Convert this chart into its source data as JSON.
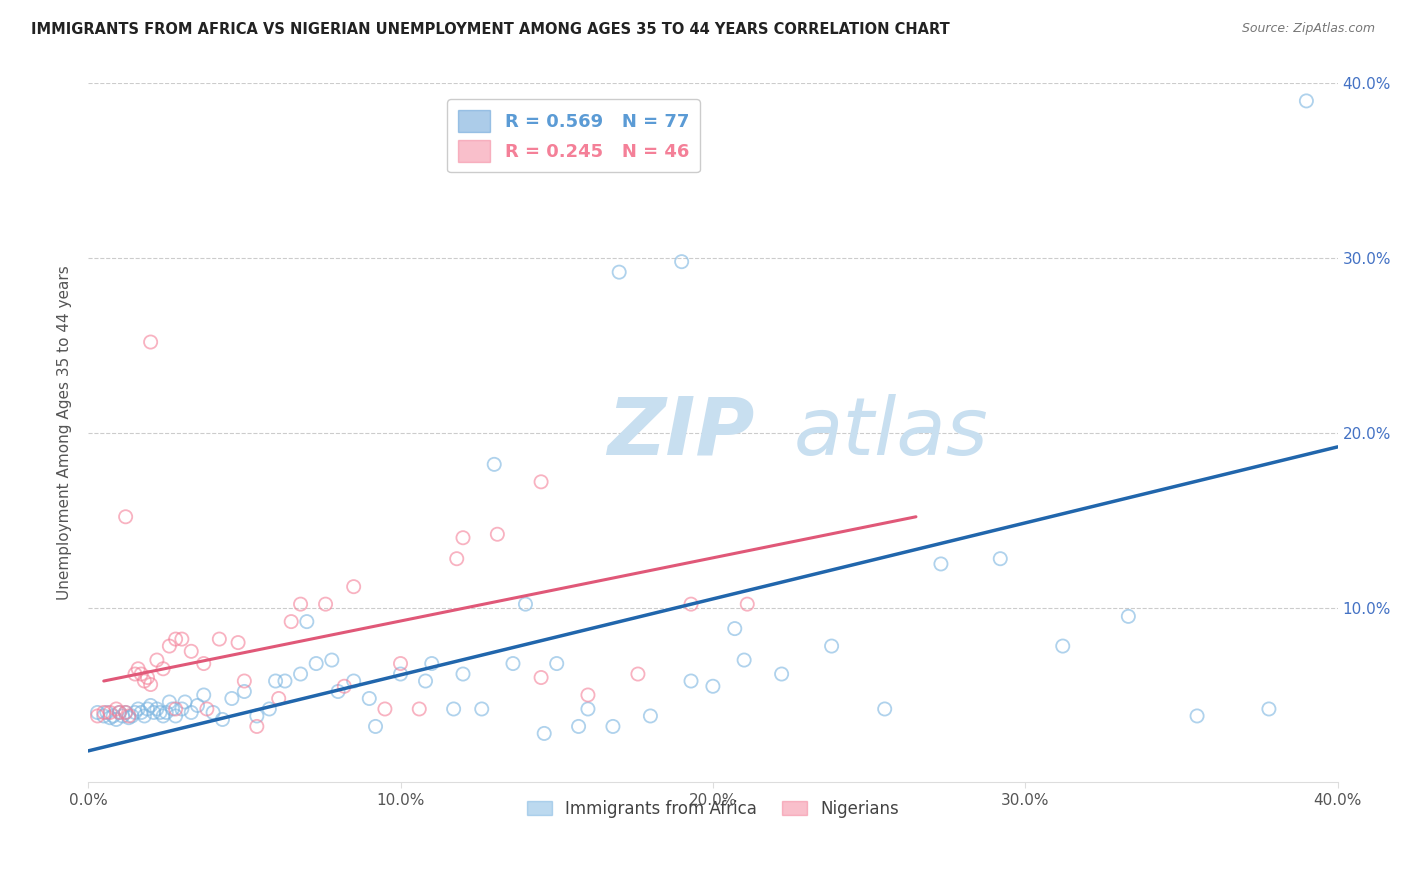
{
  "title": "IMMIGRANTS FROM AFRICA VS NIGERIAN UNEMPLOYMENT AMONG AGES 35 TO 44 YEARS CORRELATION CHART",
  "source": "Source: ZipAtlas.com",
  "ylabel": "Unemployment Among Ages 35 to 44 years",
  "xlim": [
    0.0,
    0.4
  ],
  "ylim": [
    0.0,
    0.4
  ],
  "xtick_labels": [
    "0.0%",
    "10.0%",
    "20.0%",
    "30.0%",
    "40.0%"
  ],
  "xtick_values": [
    0.0,
    0.1,
    0.2,
    0.3,
    0.4
  ],
  "right_ytick_labels": [
    "40.0%",
    "30.0%",
    "20.0%",
    "10.0%"
  ],
  "right_ytick_values": [
    0.4,
    0.3,
    0.2,
    0.1
  ],
  "legend_entries": [
    {
      "label": "R = 0.569   N = 77",
      "color": "#5b9bd5"
    },
    {
      "label": "R = 0.245   N = 46",
      "color": "#f48098"
    }
  ],
  "legend_labels_bottom": [
    "Immigrants from Africa",
    "Nigerians"
  ],
  "blue_color": "#7ab4e0",
  "pink_color": "#f48098",
  "trend_blue": "#2166ac",
  "trend_pink": "#e05878",
  "watermark_zip": "ZIP",
  "watermark_atlas": "atlas",
  "watermark_color": "#c8dff0",
  "background_color": "#ffffff",
  "grid_color": "#cccccc",
  "grid_yticks": [
    0.1,
    0.2,
    0.3,
    0.4
  ],
  "blue_trend_x": [
    0.0,
    0.4
  ],
  "blue_trend_y": [
    0.018,
    0.192
  ],
  "pink_trend_x": [
    0.005,
    0.265
  ],
  "pink_trend_y": [
    0.058,
    0.152
  ],
  "blue_scatter_x": [
    0.003,
    0.005,
    0.006,
    0.007,
    0.008,
    0.009,
    0.01,
    0.011,
    0.012,
    0.013,
    0.014,
    0.015,
    0.016,
    0.017,
    0.018,
    0.019,
    0.02,
    0.021,
    0.022,
    0.023,
    0.024,
    0.025,
    0.026,
    0.027,
    0.028,
    0.03,
    0.031,
    0.033,
    0.035,
    0.037,
    0.04,
    0.043,
    0.046,
    0.05,
    0.054,
    0.058,
    0.063,
    0.068,
    0.073,
    0.078,
    0.085,
    0.092,
    0.1,
    0.108,
    0.117,
    0.126,
    0.136,
    0.146,
    0.157,
    0.168,
    0.18,
    0.193,
    0.207,
    0.222,
    0.238,
    0.255,
    0.273,
    0.292,
    0.312,
    0.333,
    0.355,
    0.378,
    0.06,
    0.07,
    0.08,
    0.09,
    0.11,
    0.12,
    0.13,
    0.14,
    0.15,
    0.16,
    0.17,
    0.19,
    0.2,
    0.21,
    0.39
  ],
  "blue_scatter_y": [
    0.04,
    0.038,
    0.04,
    0.037,
    0.038,
    0.036,
    0.04,
    0.038,
    0.04,
    0.037,
    0.038,
    0.04,
    0.042,
    0.04,
    0.038,
    0.042,
    0.044,
    0.04,
    0.042,
    0.04,
    0.038,
    0.04,
    0.046,
    0.042,
    0.038,
    0.042,
    0.046,
    0.04,
    0.044,
    0.05,
    0.04,
    0.036,
    0.048,
    0.052,
    0.038,
    0.042,
    0.058,
    0.062,
    0.068,
    0.07,
    0.058,
    0.032,
    0.062,
    0.058,
    0.042,
    0.042,
    0.068,
    0.028,
    0.032,
    0.032,
    0.038,
    0.058,
    0.088,
    0.062,
    0.078,
    0.042,
    0.125,
    0.128,
    0.078,
    0.095,
    0.038,
    0.042,
    0.058,
    0.092,
    0.052,
    0.048,
    0.068,
    0.062,
    0.182,
    0.102,
    0.068,
    0.042,
    0.292,
    0.298,
    0.055,
    0.07,
    0.39
  ],
  "pink_scatter_x": [
    0.003,
    0.005,
    0.007,
    0.009,
    0.01,
    0.012,
    0.013,
    0.015,
    0.016,
    0.017,
    0.018,
    0.019,
    0.02,
    0.022,
    0.024,
    0.026,
    0.028,
    0.03,
    0.033,
    0.037,
    0.042,
    0.048,
    0.054,
    0.061,
    0.068,
    0.076,
    0.085,
    0.095,
    0.106,
    0.118,
    0.131,
    0.145,
    0.16,
    0.176,
    0.193,
    0.211,
    0.012,
    0.02,
    0.028,
    0.038,
    0.05,
    0.065,
    0.082,
    0.1,
    0.12,
    0.145
  ],
  "pink_scatter_y": [
    0.038,
    0.04,
    0.04,
    0.042,
    0.04,
    0.04,
    0.038,
    0.062,
    0.065,
    0.062,
    0.058,
    0.06,
    0.056,
    0.07,
    0.065,
    0.078,
    0.082,
    0.082,
    0.075,
    0.068,
    0.082,
    0.08,
    0.032,
    0.048,
    0.102,
    0.102,
    0.112,
    0.042,
    0.042,
    0.128,
    0.142,
    0.172,
    0.05,
    0.062,
    0.102,
    0.102,
    0.152,
    0.252,
    0.042,
    0.042,
    0.058,
    0.092,
    0.055,
    0.068,
    0.14,
    0.06
  ]
}
